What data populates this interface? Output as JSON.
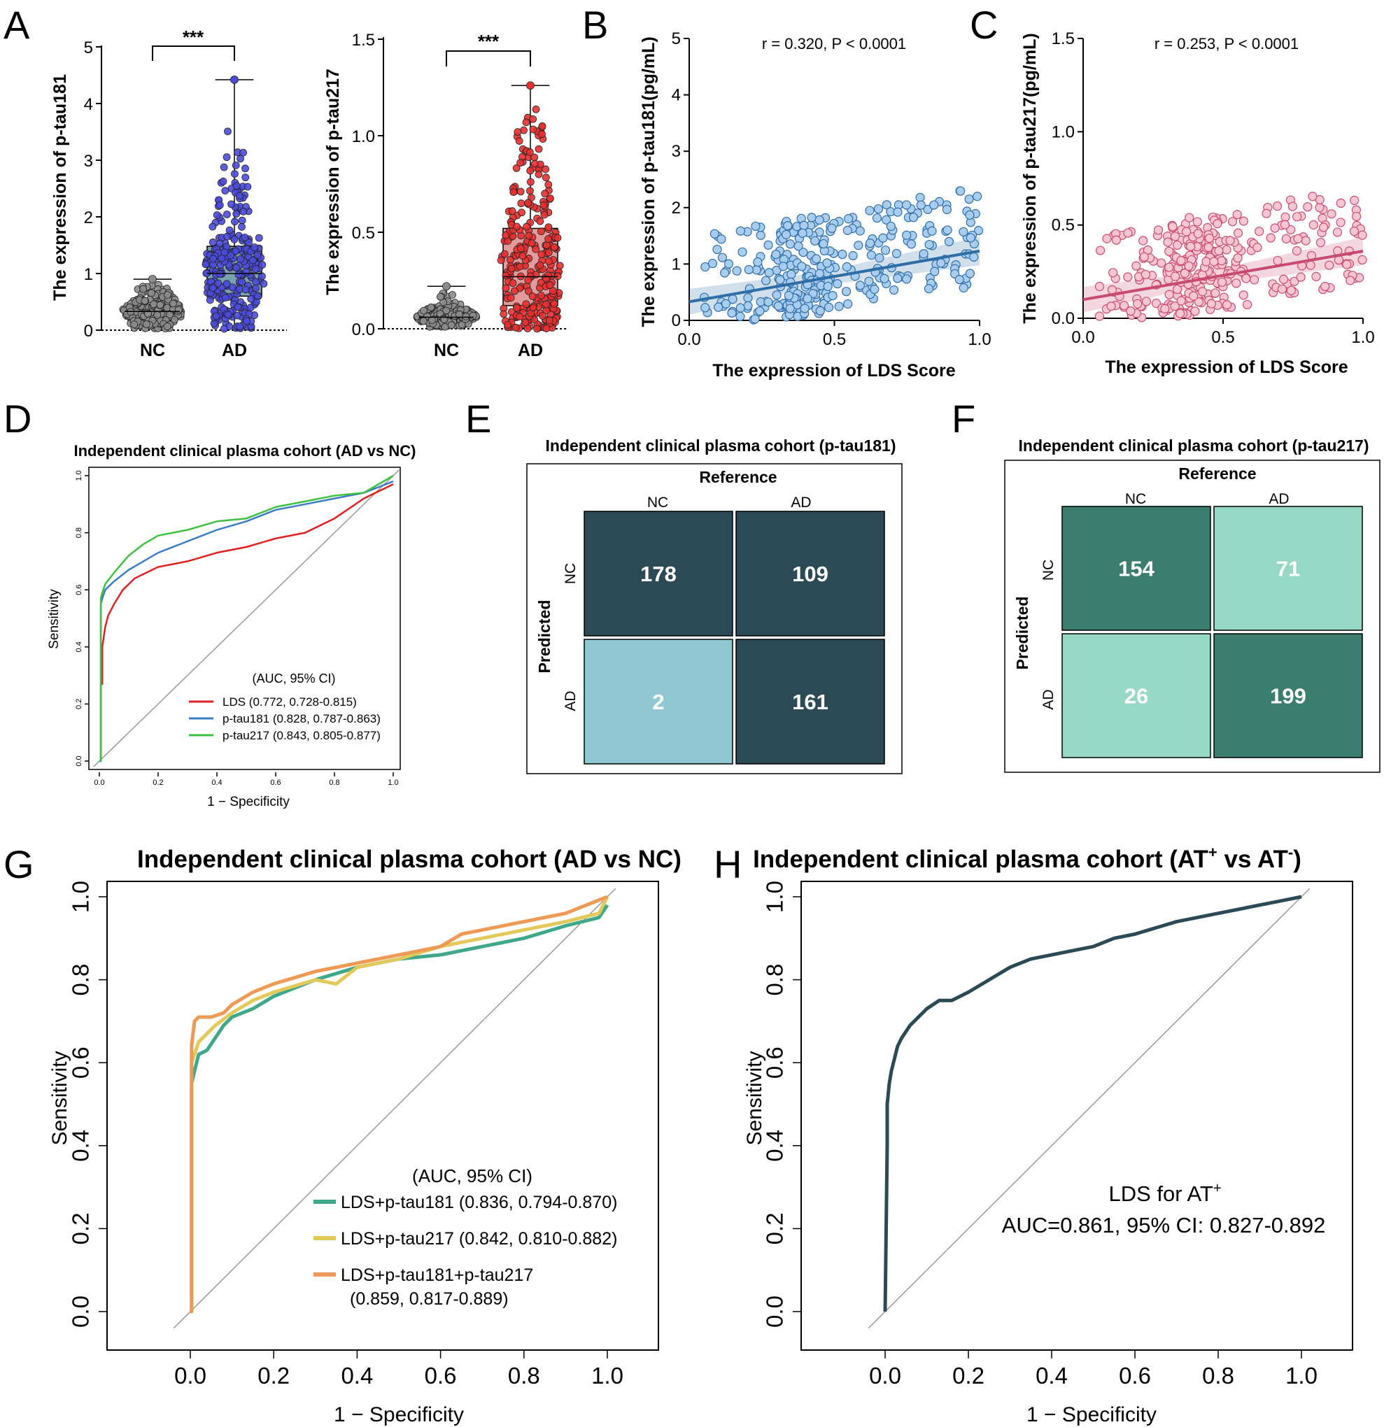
{
  "figure": {
    "panel_letters": [
      "A",
      "B",
      "C",
      "D",
      "E",
      "F",
      "G",
      "H"
    ]
  },
  "chart_data": [
    {
      "id": "A1",
      "type": "box",
      "ylabel": "The expression of p-tau181",
      "categories": [
        "NC",
        "AD"
      ],
      "ylim": [
        0,
        5
      ],
      "yticks": [
        "0",
        "1",
        "2",
        "3",
        "4",
        "5"
      ],
      "significance": "***",
      "colors": {
        "NC": "#8c8c8c",
        "AD": "#4b4bdc",
        "NC_box": "#a9a9a9",
        "AD_box": "#7aa0b3"
      },
      "stats": [
        {
          "group": "NC",
          "min": 0.03,
          "q1": 0.2,
          "median": 0.33,
          "q3": 0.45,
          "max": 0.9,
          "n": 200
        },
        {
          "group": "AD",
          "min": 0.02,
          "q1": 0.6,
          "median": 1.0,
          "q3": 1.48,
          "max": 4.42,
          "n": 270
        }
      ]
    },
    {
      "id": "A2",
      "type": "box",
      "ylabel": "The expression of p-tau217",
      "categories": [
        "NC",
        "AD"
      ],
      "ylim": [
        0,
        1.5
      ],
      "yticks": [
        "0.0",
        "0.5",
        "1.0",
        "1.5"
      ],
      "significance": "***",
      "colors": {
        "NC": "#8c8c8c",
        "AD": "#e83030",
        "NC_box": "#a9a9a9",
        "AD_box": "#e39a9a"
      },
      "stats": [
        {
          "group": "NC",
          "min": 0.01,
          "q1": 0.04,
          "median": 0.06,
          "q3": 0.08,
          "max": 0.22,
          "n": 200
        },
        {
          "group": "AD",
          "min": 0.0,
          "q1": 0.12,
          "median": 0.27,
          "q3": 0.52,
          "max": 1.26,
          "n": 270
        }
      ]
    },
    {
      "id": "B",
      "type": "scatter",
      "annotation": "r = 0.320, P < 0.0001",
      "xlabel": "The expression of LDS Score",
      "ylabel": "The expression of p-tau181(pg/mL)",
      "xlim": [
        0,
        1
      ],
      "ylim": [
        0,
        5
      ],
      "xticks": [
        "0.0",
        "0.5",
        "1.0"
      ],
      "yticks": [
        "0",
        "1",
        "2",
        "3",
        "4",
        "5"
      ],
      "point_color": "#a9cdee",
      "point_edge": "#2e6ea6",
      "fit_color": "#2e6ea6",
      "fit": {
        "intercept": 0.33,
        "slope": 0.9
      },
      "n": 320
    },
    {
      "id": "C",
      "type": "scatter",
      "annotation": "r = 0.253, P < 0.0001",
      "xlabel": "The expression of LDS Score",
      "ylabel": "The expression of p-tau217(pg/mL)",
      "xlim": [
        0,
        1
      ],
      "ylim": [
        0,
        1.5
      ],
      "xticks": [
        "0.0",
        "0.5",
        "1.0"
      ],
      "yticks": [
        "0.0",
        "0.5",
        "1.0",
        "1.5"
      ],
      "point_color": "#f7c6d3",
      "point_edge": "#c94a70",
      "fit_color": "#c94a70",
      "fit": {
        "intercept": 0.1,
        "slope": 0.26
      },
      "n": 320
    },
    {
      "id": "D",
      "type": "line",
      "title": "Independent clinical plasma cohort (AD vs NC)",
      "xlabel": "1 − Specificity",
      "ylabel": "Sensitivity",
      "xlim": [
        0,
        1
      ],
      "ylim": [
        0,
        1
      ],
      "xticks": [
        "0.0",
        "0.2",
        "0.4",
        "0.6",
        "0.8",
        "1.0"
      ],
      "yticks": [
        "0.0",
        "0.2",
        "0.4",
        "0.6",
        "0.8",
        "1.0"
      ],
      "legend_title": "(AUC, 95% CI)",
      "series": [
        {
          "name": "LDS (0.772, 0.728-0.815)",
          "color": "#e02020",
          "x": [
            0,
            0.005,
            0.005,
            0.01,
            0.01,
            0.02,
            0.03,
            0.05,
            0.08,
            0.12,
            0.2,
            0.3,
            0.4,
            0.5,
            0.6,
            0.7,
            0.8,
            0.9,
            1.0
          ],
          "y": [
            0,
            0,
            0.27,
            0.27,
            0.4,
            0.47,
            0.51,
            0.55,
            0.6,
            0.64,
            0.68,
            0.7,
            0.73,
            0.75,
            0.78,
            0.8,
            0.85,
            0.92,
            0.97
          ]
        },
        {
          "name": "p-tau181 (0.828, 0.787-0.863)",
          "color": "#3b7dc4",
          "x": [
            0,
            0.005,
            0.005,
            0.01,
            0.02,
            0.05,
            0.1,
            0.15,
            0.2,
            0.3,
            0.4,
            0.5,
            0.6,
            0.7,
            0.8,
            0.9,
            1.0
          ],
          "y": [
            0,
            0,
            0.55,
            0.57,
            0.6,
            0.63,
            0.67,
            0.7,
            0.73,
            0.77,
            0.81,
            0.84,
            0.88,
            0.9,
            0.92,
            0.94,
            0.98
          ]
        },
        {
          "name": "p-tau217 (0.843, 0.805-0.877)",
          "color": "#3fbf3f",
          "x": [
            0,
            0.005,
            0.005,
            0.01,
            0.02,
            0.05,
            0.1,
            0.15,
            0.2,
            0.3,
            0.4,
            0.5,
            0.6,
            0.7,
            0.8,
            0.9,
            0.95,
            1.0
          ],
          "y": [
            0,
            0,
            0.57,
            0.59,
            0.62,
            0.66,
            0.72,
            0.76,
            0.79,
            0.81,
            0.84,
            0.85,
            0.89,
            0.91,
            0.93,
            0.94,
            0.97,
            1.0
          ]
        }
      ]
    },
    {
      "id": "E",
      "type": "heatmap",
      "title": "Independent clinical plasma cohort (p-tau181)",
      "col_header": "Reference",
      "row_header": "Predicted",
      "cols": [
        "NC",
        "AD"
      ],
      "rows": [
        "NC",
        "AD"
      ],
      "values": [
        [
          178,
          109
        ],
        [
          2,
          161
        ]
      ],
      "colors": {
        "high": "#2c4a55",
        "low": "#8fc8d3"
      }
    },
    {
      "id": "F",
      "type": "heatmap",
      "title": "Independent clinical plasma cohort (p-tau217)",
      "col_header": "Reference",
      "row_header": "Predicted",
      "cols": [
        "NC",
        "AD"
      ],
      "rows": [
        "NC",
        "AD"
      ],
      "values": [
        [
          154,
          71
        ],
        [
          26,
          199
        ]
      ],
      "colors": {
        "high": "#3b7d6f",
        "low": "#97d8c5"
      }
    },
    {
      "id": "G",
      "type": "line",
      "title": "Independent clinical plasma cohort (AD vs NC)",
      "xlabel": "1 − Specificity",
      "ylabel": "Sensitivity",
      "xlim": [
        0,
        1
      ],
      "ylim": [
        0,
        1
      ],
      "xticks": [
        "0.0",
        "0.2",
        "0.4",
        "0.6",
        "0.8",
        "1.0"
      ],
      "yticks": [
        "0.0",
        "0.2",
        "0.4",
        "0.6",
        "0.8",
        "1.0"
      ],
      "legend_title": "(AUC, 95% CI)",
      "series": [
        {
          "name": "LDS+p-tau181 (0.836, 0.794-0.870)",
          "color": "#3fa88a",
          "x": [
            0,
            0.003,
            0.003,
            0.01,
            0.02,
            0.04,
            0.06,
            0.08,
            0.1,
            0.15,
            0.2,
            0.3,
            0.4,
            0.5,
            0.6,
            0.7,
            0.8,
            0.9,
            0.98,
            1.0
          ],
          "y": [
            0,
            0,
            0.55,
            0.58,
            0.62,
            0.63,
            0.66,
            0.69,
            0.71,
            0.73,
            0.76,
            0.8,
            0.83,
            0.85,
            0.86,
            0.88,
            0.9,
            0.93,
            0.95,
            0.98
          ]
        },
        {
          "name": "LDS+p-tau217 (0.842, 0.810-0.882)",
          "color": "#e3c85a",
          "x": [
            0,
            0.003,
            0.003,
            0.01,
            0.02,
            0.04,
            0.06,
            0.1,
            0.15,
            0.2,
            0.3,
            0.35,
            0.4,
            0.5,
            0.6,
            0.7,
            0.8,
            0.9,
            0.98,
            1.0
          ],
          "y": [
            0,
            0,
            0.6,
            0.62,
            0.65,
            0.67,
            0.69,
            0.72,
            0.75,
            0.77,
            0.8,
            0.79,
            0.83,
            0.85,
            0.88,
            0.9,
            0.92,
            0.94,
            0.96,
            1.0
          ]
        },
        {
          "name": "LDS+p-tau181+p-tau217",
          "name_line2": "(0.859, 0.817-0.889)",
          "color": "#ee9a55",
          "x": [
            0,
            0.003,
            0.003,
            0.01,
            0.02,
            0.05,
            0.08,
            0.1,
            0.15,
            0.2,
            0.3,
            0.4,
            0.5,
            0.6,
            0.65,
            0.7,
            0.8,
            0.9,
            0.95,
            1.0
          ],
          "y": [
            0,
            0,
            0.64,
            0.7,
            0.71,
            0.71,
            0.72,
            0.74,
            0.77,
            0.79,
            0.82,
            0.84,
            0.86,
            0.88,
            0.91,
            0.92,
            0.94,
            0.96,
            0.98,
            1.0
          ]
        }
      ]
    },
    {
      "id": "H",
      "type": "line",
      "title_main": "Independent clinical plasma cohort (AT",
      "title_sup1": "+",
      "title_mid": " vs AT",
      "title_sup2": "-",
      "title_end": ")",
      "xlabel": "1 − Specificity",
      "ylabel": "Sensitivity",
      "xlim": [
        0,
        1
      ],
      "ylim": [
        0,
        1
      ],
      "xticks": [
        "0.0",
        "0.2",
        "0.4",
        "0.6",
        "0.8",
        "1.0"
      ],
      "yticks": [
        "0.0",
        "0.2",
        "0.4",
        "0.6",
        "0.8",
        "1.0"
      ],
      "annotation_line1": "LDS for AT",
      "annotation_sup": "+",
      "annotation_line2": "AUC=0.861, 95% CI: 0.827-0.892",
      "series": [
        {
          "name": "LDS for AT+",
          "color": "#2c4a55",
          "x": [
            0,
            0.005,
            0.005,
            0.01,
            0.015,
            0.02,
            0.03,
            0.04,
            0.06,
            0.08,
            0.1,
            0.13,
            0.16,
            0.2,
            0.25,
            0.3,
            0.35,
            0.4,
            0.45,
            0.5,
            0.55,
            0.6,
            0.7,
            0.8,
            0.9,
            0.95,
            1.0
          ],
          "y": [
            0,
            0.4,
            0.5,
            0.55,
            0.58,
            0.6,
            0.64,
            0.66,
            0.69,
            0.71,
            0.73,
            0.75,
            0.75,
            0.77,
            0.8,
            0.83,
            0.85,
            0.86,
            0.87,
            0.88,
            0.9,
            0.91,
            0.94,
            0.96,
            0.98,
            0.99,
            1.0
          ]
        }
      ]
    }
  ]
}
